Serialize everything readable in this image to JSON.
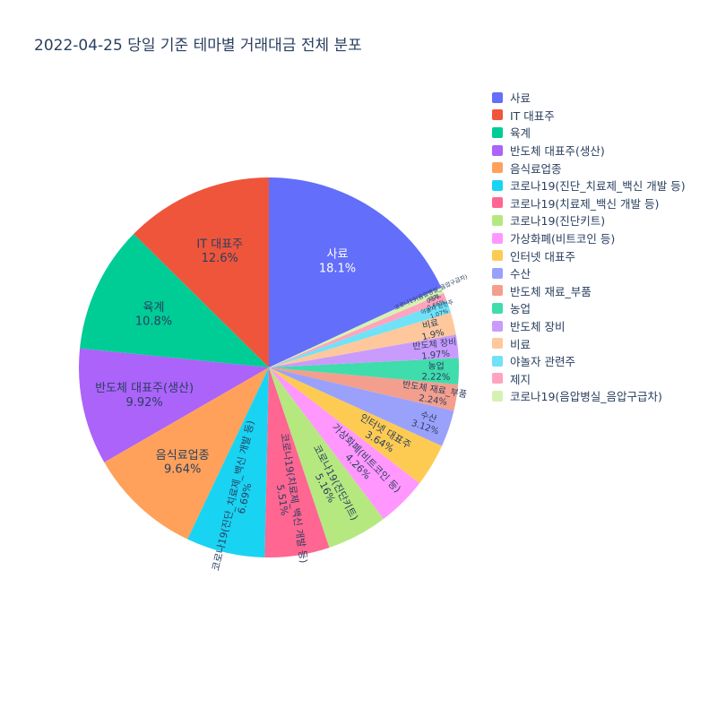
{
  "title": "2022-04-25 당일 기준 테마별 거래대금 전체 분포",
  "chart_data": {
    "type": "pie",
    "title": "2022-04-25 당일 기준 테마별 거래대금 전체 분포",
    "legend_position": "right",
    "direction": "counterclockwise",
    "start_angle_deg": 65.16,
    "center": [
      300,
      410
    ],
    "radius": 212,
    "background_color": "#ffffff",
    "title_color": "#2a3f5f",
    "legend_text_color": "#2a3f5f",
    "slices": [
      {
        "label": "사료",
        "value": 18.1,
        "pct_label": "18.1%",
        "color": "#636EFA",
        "text_color": "#ffffff"
      },
      {
        "label": "IT 대표주",
        "value": 12.6,
        "pct_label": "12.6%",
        "color": "#EF553B",
        "text_color": "#2a3f5f"
      },
      {
        "label": "육계",
        "value": 10.8,
        "pct_label": "10.8%",
        "color": "#00CC96",
        "text_color": "#2a3f5f"
      },
      {
        "label": "반도체 대표주(생산)",
        "value": 9.92,
        "pct_label": "9.92%",
        "color": "#AB63FA",
        "text_color": "#2a3f5f"
      },
      {
        "label": "음식료업종",
        "value": 9.64,
        "pct_label": "9.64%",
        "color": "#FFA15A",
        "text_color": "#2a3f5f"
      },
      {
        "label": "코로나19(진단_치료제_백신 개발 등)",
        "value": 6.69,
        "pct_label": "6.69%",
        "color": "#19D3F3",
        "text_color": "#2a3f5f"
      },
      {
        "label": "코로나19(치료제_백신 개발 등)",
        "value": 5.51,
        "pct_label": "5.51%",
        "color": "#FF6692",
        "text_color": "#2a3f5f"
      },
      {
        "label": "코로나19(진단키트)",
        "value": 5.16,
        "pct_label": "5.16%",
        "color": "#B6E880",
        "text_color": "#2a3f5f"
      },
      {
        "label": "가상화폐(비트코인 등)",
        "value": 4.26,
        "pct_label": "4.26%",
        "color": "#FF97FF",
        "text_color": "#2a3f5f"
      },
      {
        "label": "인터넷 대표주",
        "value": 3.64,
        "pct_label": "3.64%",
        "color": "#FECB52",
        "text_color": "#2a3f5f"
      },
      {
        "label": "수산",
        "value": 3.12,
        "pct_label": "3.12%",
        "color": "#9AA1FB",
        "text_color": "#2a3f5f"
      },
      {
        "label": "반도체 재료_부품",
        "value": 2.24,
        "pct_label": "2.24%",
        "color": "#F49E8D",
        "text_color": "#2a3f5f"
      },
      {
        "label": "농업",
        "value": 2.22,
        "pct_label": "2.22%",
        "color": "#3FDCAC",
        "text_color": "#2a3f5f"
      },
      {
        "label": "반도체 장비",
        "value": 1.97,
        "pct_label": "1.97%",
        "color": "#C99BFC",
        "text_color": "#2a3f5f"
      },
      {
        "label": "비료",
        "value": 1.9,
        "pct_label": "1.9%",
        "color": "#FFC79C",
        "text_color": "#2a3f5f"
      },
      {
        "label": "야놀자 관련주",
        "value": 1.07,
        "pct_label": "1.07%",
        "color": "#70E2F7",
        "text_color": "#2a3f5f"
      },
      {
        "label": "제지",
        "value": 0.66,
        "pct_label": "0.66%",
        "color": "#FFA3BE",
        "text_color": "#2a3f5f"
      },
      {
        "label": "코로나19(음압병실_음압구급차)",
        "value": 0.5,
        "pct_label": "0.5%",
        "color": "#D5F2B3",
        "text_color": "#2a3f5f"
      }
    ]
  }
}
